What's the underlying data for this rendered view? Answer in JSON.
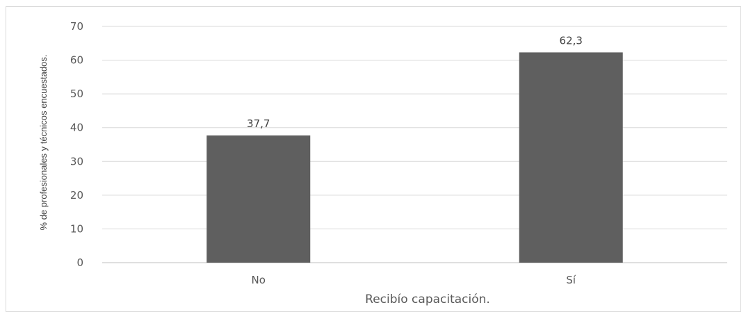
{
  "chart_data": {
    "type": "bar",
    "categories": [
      "No",
      "Sí"
    ],
    "values": [
      37.7,
      62.3
    ],
    "value_labels": [
      "37,7",
      "62,3"
    ],
    "title": "",
    "xlabel": "Recibío capacitación.",
    "ylabel": "% de profesionales y técnicos encuestados.",
    "ylim": [
      0,
      70
    ],
    "yticks": [
      0,
      10,
      20,
      30,
      40,
      50,
      60,
      70
    ],
    "grid": true,
    "legend": "none",
    "bar_color": "#5f5f5f"
  }
}
